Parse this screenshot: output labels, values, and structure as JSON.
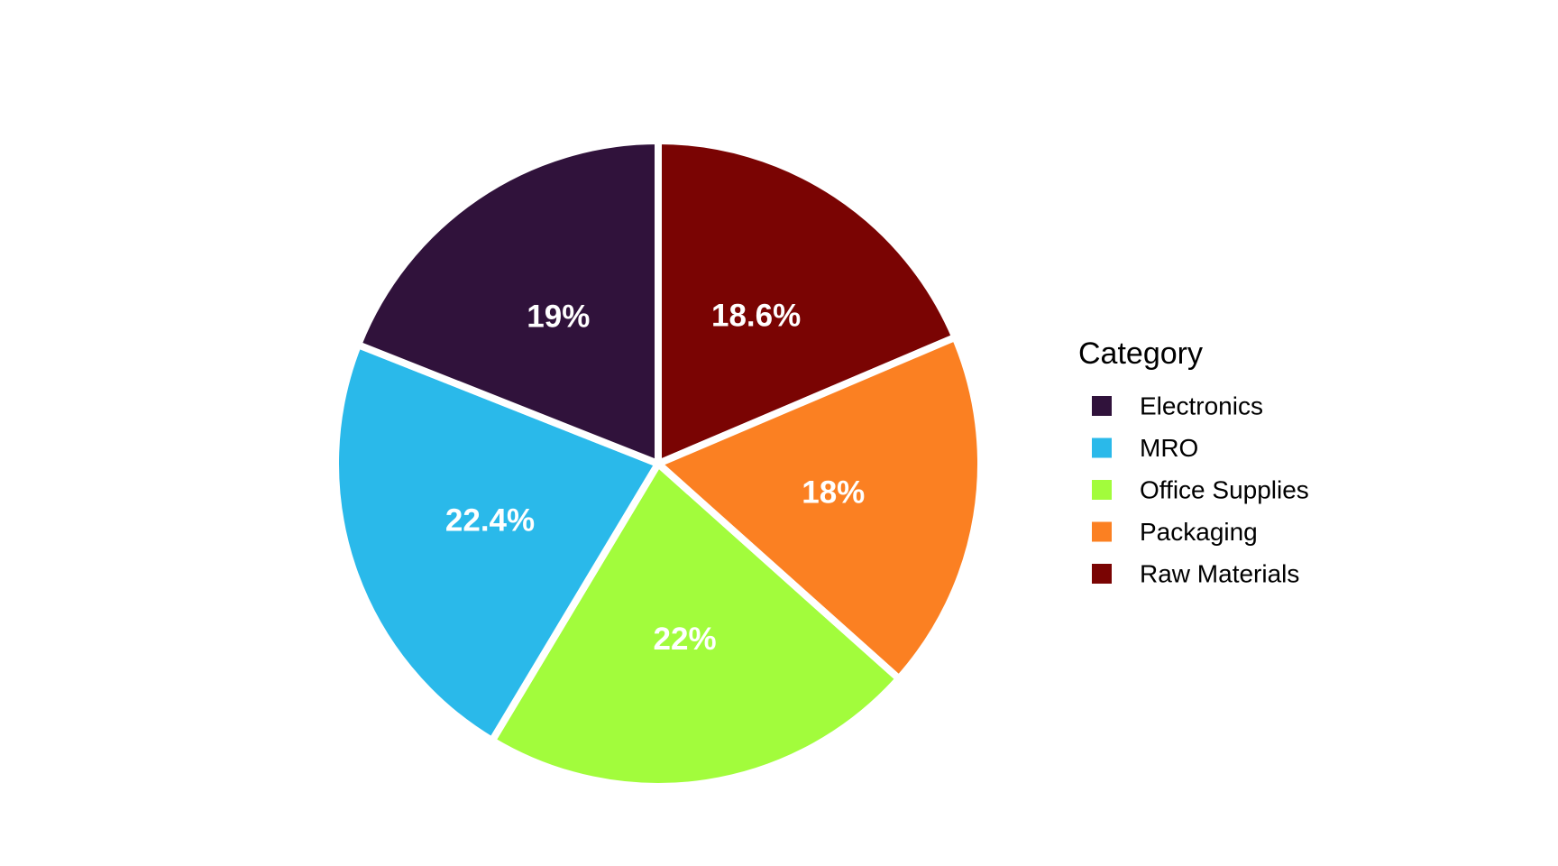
{
  "chart_data": {
    "type": "pie",
    "title": "",
    "legend": {
      "title": "Category",
      "position": "right"
    },
    "slices": [
      {
        "name": "Raw Materials",
        "value": 18.6,
        "label": "18.6%",
        "color": "#7A0403"
      },
      {
        "name": "Packaging",
        "value": 18.0,
        "label": "18%",
        "color": "#FB8022"
      },
      {
        "name": "Office Supplies",
        "value": 22.0,
        "label": "22%",
        "color": "#A2FC3C"
      },
      {
        "name": "MRO",
        "value": 22.4,
        "label": "22.4%",
        "color": "#2AB9EA"
      },
      {
        "name": "Electronics",
        "value": 19.0,
        "label": "19%",
        "color": "#30123B"
      }
    ],
    "legend_order": [
      "Electronics",
      "MRO",
      "Office Supplies",
      "Packaging",
      "Raw Materials"
    ]
  }
}
